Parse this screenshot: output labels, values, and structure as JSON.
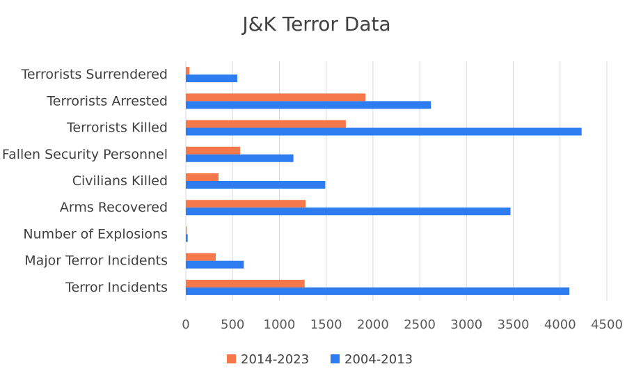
{
  "chart_data": {
    "type": "bar",
    "orientation": "horizontal",
    "title": "J&K Terror Data",
    "xlabel": "",
    "ylabel": "",
    "categories": [
      "Terrorists Surrendered",
      "Terrorists Arrested",
      "Terrorists Killed",
      "Fallen Security Personnel",
      "Civilians Killed",
      "Arms Recovered",
      "Number of Explosions",
      "Major Terror Incidents",
      "Terror Incidents"
    ],
    "series": [
      {
        "name": "2014-2023",
        "color": "#f4784a",
        "values": [
          40,
          1920,
          1710,
          580,
          350,
          1280,
          10,
          320,
          1270
        ]
      },
      {
        "name": "2004-2013",
        "color": "#2e7df0",
        "values": [
          550,
          2620,
          4230,
          1150,
          1490,
          3470,
          20,
          620,
          4100
        ]
      }
    ],
    "xlim": [
      0,
      4500
    ],
    "x_ticks": [
      0,
      500,
      1000,
      1500,
      2000,
      2500,
      3000,
      3500,
      4000,
      4500
    ],
    "grid": "vertical",
    "legend": "bottom"
  }
}
